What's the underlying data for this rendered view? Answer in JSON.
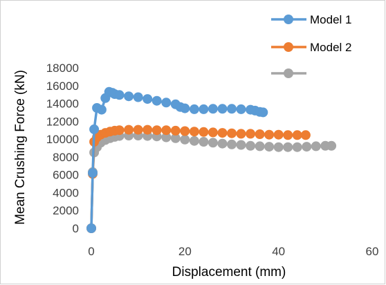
{
  "chart_data": {
    "type": "line",
    "title": "",
    "xlabel": "Displacement (mm)",
    "ylabel": "Mean Crushing Force (kN)",
    "xlim": [
      0,
      60
    ],
    "ylim": [
      0,
      18000
    ],
    "x_ticks": [
      "0",
      "20",
      "40",
      "60"
    ],
    "y_ticks": [
      "0",
      "2000",
      "4000",
      "6000",
      "8000",
      "10000",
      "12000",
      "14000",
      "16000",
      "18000"
    ],
    "grid": false,
    "legend_position": "top-right",
    "series": [
      {
        "name": "Model 1",
        "color": "#5b9bd5",
        "points": [
          [
            0,
            0
          ],
          [
            0.3,
            6200
          ],
          [
            0.6,
            11100
          ],
          [
            1.2,
            13500
          ],
          [
            2.2,
            13300
          ],
          [
            3.0,
            14600
          ],
          [
            3.8,
            15300
          ],
          [
            4.5,
            15200
          ],
          [
            5,
            15050
          ],
          [
            6,
            14950
          ],
          [
            8,
            14800
          ],
          [
            10,
            14700
          ],
          [
            12,
            14500
          ],
          [
            14,
            14300
          ],
          [
            16,
            14100
          ],
          [
            18,
            13900
          ],
          [
            19,
            13600
          ],
          [
            20,
            13450
          ],
          [
            22,
            13350
          ],
          [
            24,
            13350
          ],
          [
            26,
            13400
          ],
          [
            28,
            13400
          ],
          [
            30,
            13400
          ],
          [
            32,
            13350
          ],
          [
            34,
            13300
          ],
          [
            35,
            13200
          ],
          [
            36,
            13050
          ],
          [
            36.7,
            13000
          ]
        ]
      },
      {
        "name": "Model 2",
        "color": "#ed7d31",
        "points": [
          [
            0,
            0
          ],
          [
            0.3,
            6100
          ],
          [
            0.6,
            9700
          ],
          [
            1.2,
            10200
          ],
          [
            2,
            10500
          ],
          [
            3,
            10700
          ],
          [
            4,
            10850
          ],
          [
            5,
            10950
          ],
          [
            6,
            11000
          ],
          [
            8,
            11050
          ],
          [
            10,
            11050
          ],
          [
            12,
            11050
          ],
          [
            14,
            11000
          ],
          [
            16,
            11000
          ],
          [
            18,
            10950
          ],
          [
            20,
            10900
          ],
          [
            22,
            10850
          ],
          [
            24,
            10800
          ],
          [
            26,
            10750
          ],
          [
            28,
            10700
          ],
          [
            30,
            10650
          ],
          [
            32,
            10600
          ],
          [
            34,
            10600
          ],
          [
            36,
            10550
          ],
          [
            38,
            10500
          ],
          [
            40,
            10500
          ],
          [
            42,
            10450
          ],
          [
            44,
            10450
          ],
          [
            45.8,
            10450
          ]
        ]
      },
      {
        "name": "",
        "color": "#a5a5a5",
        "points": [
          [
            0,
            0
          ],
          [
            0.3,
            6300
          ],
          [
            0.6,
            8500
          ],
          [
            1.2,
            9100
          ],
          [
            2,
            9600
          ],
          [
            3,
            9900
          ],
          [
            4,
            10100
          ],
          [
            5,
            10250
          ],
          [
            6,
            10350
          ],
          [
            8,
            10400
          ],
          [
            10,
            10400
          ],
          [
            12,
            10350
          ],
          [
            14,
            10300
          ],
          [
            16,
            10200
          ],
          [
            18,
            10100
          ],
          [
            20,
            9950
          ],
          [
            22,
            9800
          ],
          [
            24,
            9700
          ],
          [
            26,
            9600
          ],
          [
            28,
            9500
          ],
          [
            30,
            9400
          ],
          [
            32,
            9350
          ],
          [
            34,
            9250
          ],
          [
            36,
            9200
          ],
          [
            38,
            9150
          ],
          [
            40,
            9100
          ],
          [
            42,
            9100
          ],
          [
            44,
            9100
          ],
          [
            46,
            9150
          ],
          [
            48,
            9200
          ],
          [
            50,
            9250
          ],
          [
            51.3,
            9250
          ]
        ]
      }
    ]
  }
}
